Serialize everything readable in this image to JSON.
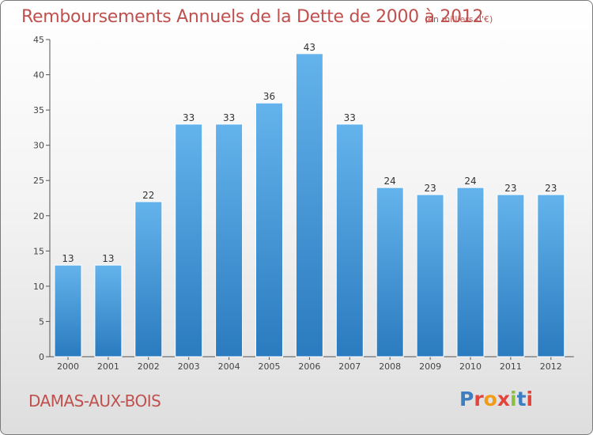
{
  "chart_data": {
    "type": "bar",
    "title": "Remboursements Annuels de la Dette de 2000 à 2012",
    "subtitle": "(en milliers d'€)",
    "categories": [
      "2000",
      "2001",
      "2002",
      "2003",
      "2004",
      "2005",
      "2006",
      "2007",
      "2008",
      "2009",
      "2010",
      "2011",
      "2012"
    ],
    "values": [
      13,
      13,
      22,
      33,
      33,
      36,
      43,
      33,
      24,
      23,
      24,
      23,
      23
    ],
    "ylim": [
      0,
      45
    ],
    "yticks": [
      0,
      5,
      10,
      15,
      20,
      25,
      30,
      35,
      40,
      45
    ],
    "grid": false,
    "xlabel": "",
    "ylabel": "",
    "colors": {
      "bar_light": "#64b3ec",
      "bar_dark": "#2a7bbf",
      "title": "#c0504d",
      "axis": "#555555"
    }
  },
  "footer": {
    "town": "DAMAS-AUX-BOIS",
    "logo_text": "Proxiti",
    "logo_colors": [
      "#3b7ec2",
      "#e2453c",
      "#f29b16",
      "#e2453c",
      "#8cbf3f",
      "#3b7ec2",
      "#e2453c"
    ]
  }
}
